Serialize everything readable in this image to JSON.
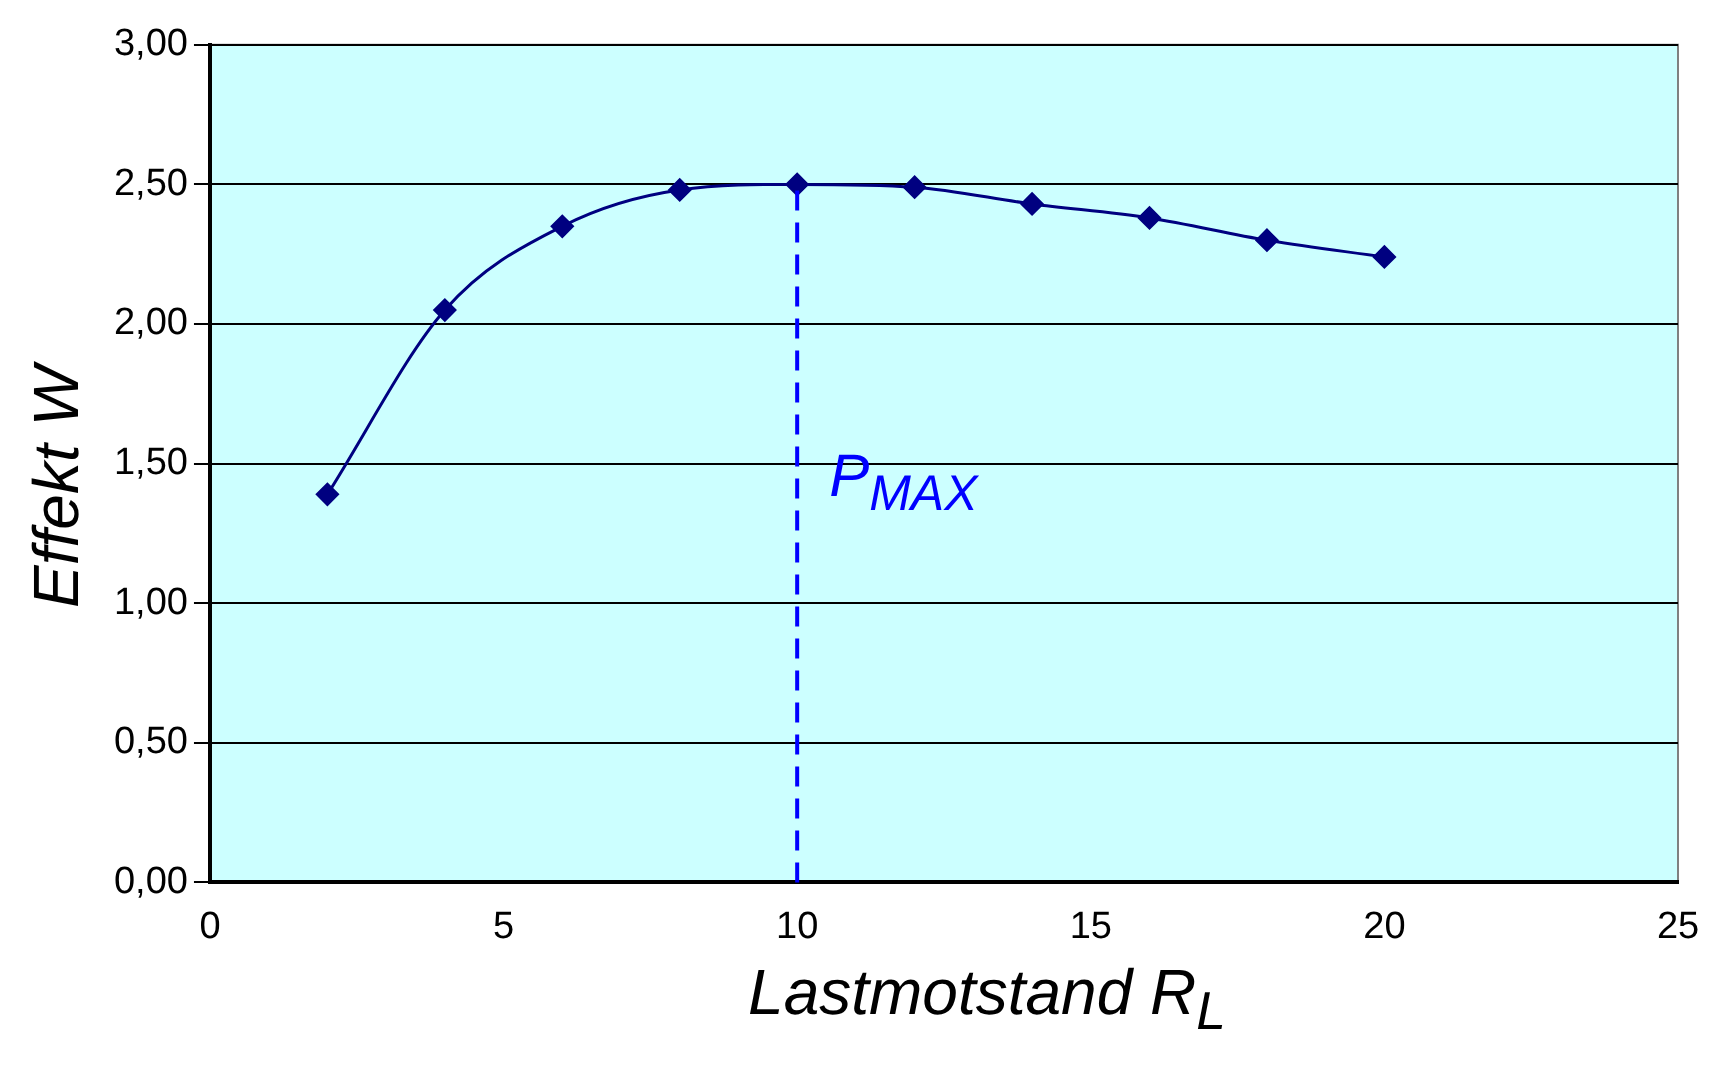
{
  "chart_data": {
    "type": "line",
    "xlabel": "Lastmotstand R$_{L}$",
    "ylabel": "Effekt W",
    "x": [
      2,
      4,
      6,
      8,
      10,
      12,
      14,
      16,
      18,
      20
    ],
    "series": [
      {
        "color": "#000080",
        "values": [
          1.39,
          2.05,
          2.35,
          2.48,
          2.5,
          2.49,
          2.43,
          2.38,
          2.3,
          2.24
        ]
      }
    ],
    "xlim": [
      0,
      25
    ],
    "xticks": [
      0,
      5,
      10,
      15,
      20,
      25
    ],
    "ylim": [
      0,
      3
    ],
    "yticks": [
      {
        "value": 0,
        "label": "0,00"
      },
      {
        "value": 0.5,
        "label": "0,50"
      },
      {
        "value": 1,
        "label": "1,00"
      },
      {
        "value": 1.5,
        "label": "1,50"
      },
      {
        "value": 2,
        "label": "2,00"
      },
      {
        "value": 2.5,
        "label": "2,50"
      },
      {
        "value": 3,
        "label": "3,00"
      }
    ],
    "ref_lines": [
      {
        "axis": "x",
        "value": 10,
        "label": "P$_{MAX}$",
        "color": "#0000ff",
        "line_style": "dashed"
      }
    ],
    "grid": "y",
    "legend": false,
    "marker": "diamond",
    "line_style": "solid"
  }
}
